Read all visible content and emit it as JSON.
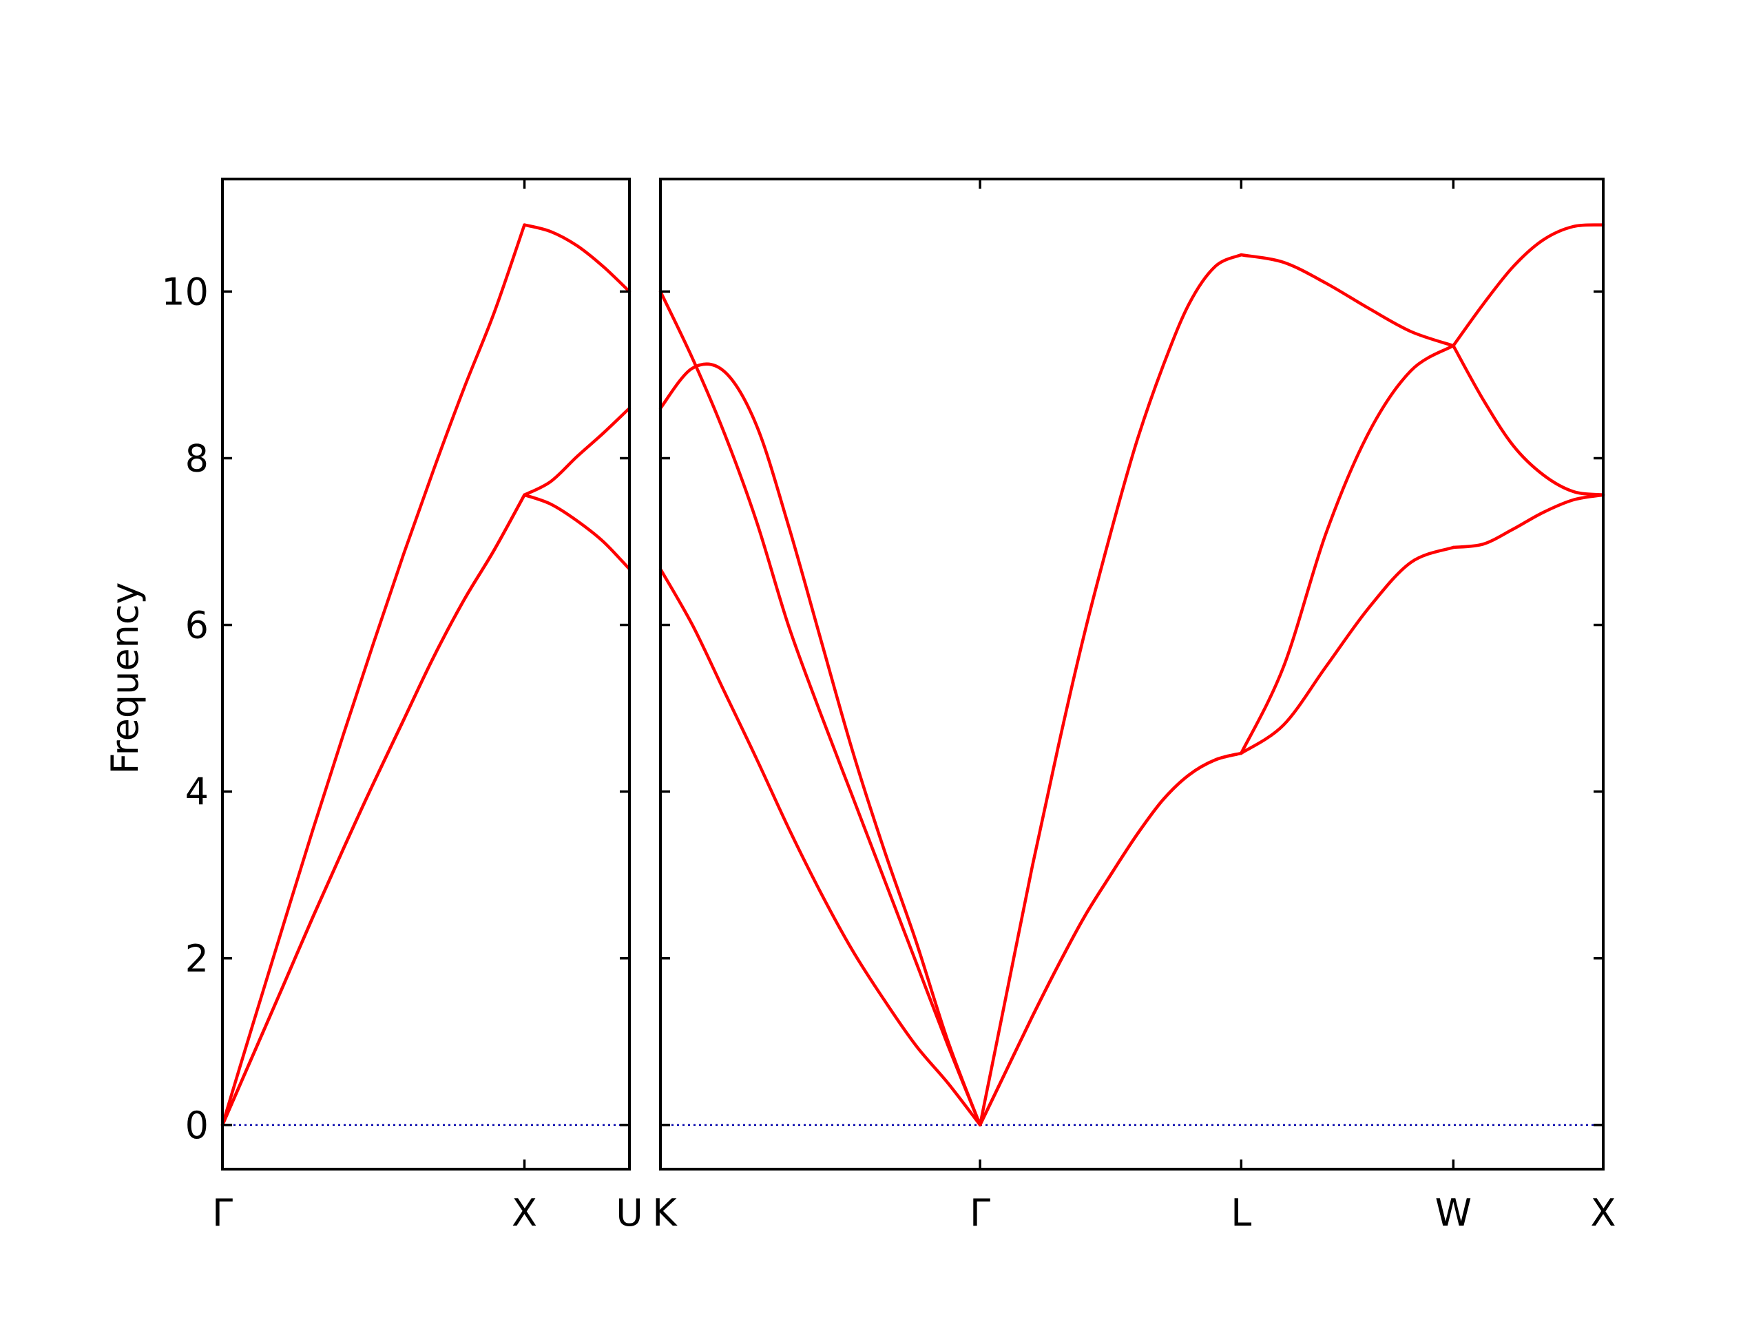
{
  "figure": {
    "ylabel": "Frequency"
  },
  "chart_data": {
    "type": "line",
    "title": "",
    "xlabel": "",
    "ylabel": "Frequency",
    "ylim": [
      -0.53,
      11.35
    ],
    "yticks": [
      0,
      2,
      4,
      6,
      8,
      10
    ],
    "grid": false,
    "legend": "none",
    "colors": {
      "band": "#ff0000",
      "zero_line": "#0000aa",
      "axes": "#000000"
    },
    "panels": [
      {
        "name": "panel-1",
        "path_labels": [
          "Γ",
          "X",
          "U"
        ],
        "segments": [
          {
            "from": "Γ",
            "to": "X",
            "t": [
              0,
              0.1,
              0.2,
              0.3,
              0.4,
              0.5,
              0.6,
              0.7,
              0.8,
              0.9,
              1.0
            ],
            "bands": [
              [
                0,
                0.83,
                1.66,
                2.5,
                3.31,
                4.1,
                4.86,
                5.62,
                6.3,
                6.9,
                7.56
              ],
              [
                0,
                0.83,
                1.66,
                2.5,
                3.31,
                4.1,
                4.86,
                5.62,
                6.3,
                6.9,
                7.56
              ],
              [
                0,
                1.2,
                2.38,
                3.55,
                4.68,
                5.78,
                6.85,
                7.87,
                8.84,
                9.75,
                10.8
              ]
            ]
          },
          {
            "from": "X",
            "to": "U",
            "t": [
              0,
              0.25,
              0.5,
              0.75,
              1.0
            ],
            "bands": [
              [
                7.56,
                7.45,
                7.25,
                7.0,
                6.67
              ],
              [
                7.56,
                7.72,
                8.02,
                8.3,
                8.6
              ],
              [
                10.8,
                10.72,
                10.55,
                10.3,
                10.0
              ]
            ]
          }
        ]
      },
      {
        "name": "panel-2",
        "path_labels": [
          "K",
          "Γ",
          "L",
          "W",
          "X"
        ],
        "segments": [
          {
            "from": "K",
            "to": "Γ",
            "t": [
              0,
              0.1,
              0.2,
              0.3,
              0.4,
              0.5,
              0.6,
              0.7,
              0.8,
              0.9,
              1.0
            ],
            "bands": [
              [
                6.67,
                6.0,
                5.2,
                4.4,
                3.57,
                2.8,
                2.1,
                1.5,
                0.95,
                0.5,
                0
              ],
              [
                10.0,
                9.2,
                8.3,
                7.25,
                6.0,
                4.95,
                3.95,
                2.95,
                1.95,
                0.95,
                0
              ],
              [
                8.6,
                9.08,
                9.04,
                8.4,
                7.2,
                5.85,
                4.5,
                3.3,
                2.2,
                1.0,
                0
              ]
            ]
          },
          {
            "from": "Γ",
            "to": "L",
            "t": [
              0,
              0.1,
              0.2,
              0.3,
              0.4,
              0.5,
              0.6,
              0.7,
              0.8,
              0.9,
              1.0
            ],
            "bands": [
              [
                0,
                0.65,
                1.3,
                1.92,
                2.5,
                3.0,
                3.48,
                3.9,
                4.2,
                4.38,
                4.46
              ],
              [
                0,
                0.65,
                1.3,
                1.92,
                2.5,
                3.0,
                3.48,
                3.9,
                4.2,
                4.38,
                4.46
              ],
              [
                0,
                1.55,
                3.1,
                4.55,
                5.9,
                7.1,
                8.2,
                9.1,
                9.85,
                10.3,
                10.44
              ]
            ]
          },
          {
            "from": "L",
            "to": "W",
            "t": [
              0,
              0.2,
              0.4,
              0.6,
              0.8,
              1.0
            ],
            "bands": [
              [
                4.46,
                4.8,
                5.5,
                6.2,
                6.75,
                6.93
              ],
              [
                4.46,
                5.5,
                7.1,
                8.3,
                9.05,
                9.35
              ],
              [
                10.44,
                10.35,
                10.1,
                9.8,
                9.52,
                9.35
              ]
            ]
          },
          {
            "from": "W",
            "to": "X",
            "t": [
              0,
              0.2,
              0.4,
              0.6,
              0.8,
              1.0
            ],
            "bands": [
              [
                6.93,
                6.97,
                7.15,
                7.35,
                7.5,
                7.56
              ],
              [
                9.35,
                8.7,
                8.15,
                7.8,
                7.6,
                7.56
              ],
              [
                9.35,
                9.85,
                10.3,
                10.62,
                10.78,
                10.8
              ]
            ]
          }
        ]
      }
    ]
  }
}
